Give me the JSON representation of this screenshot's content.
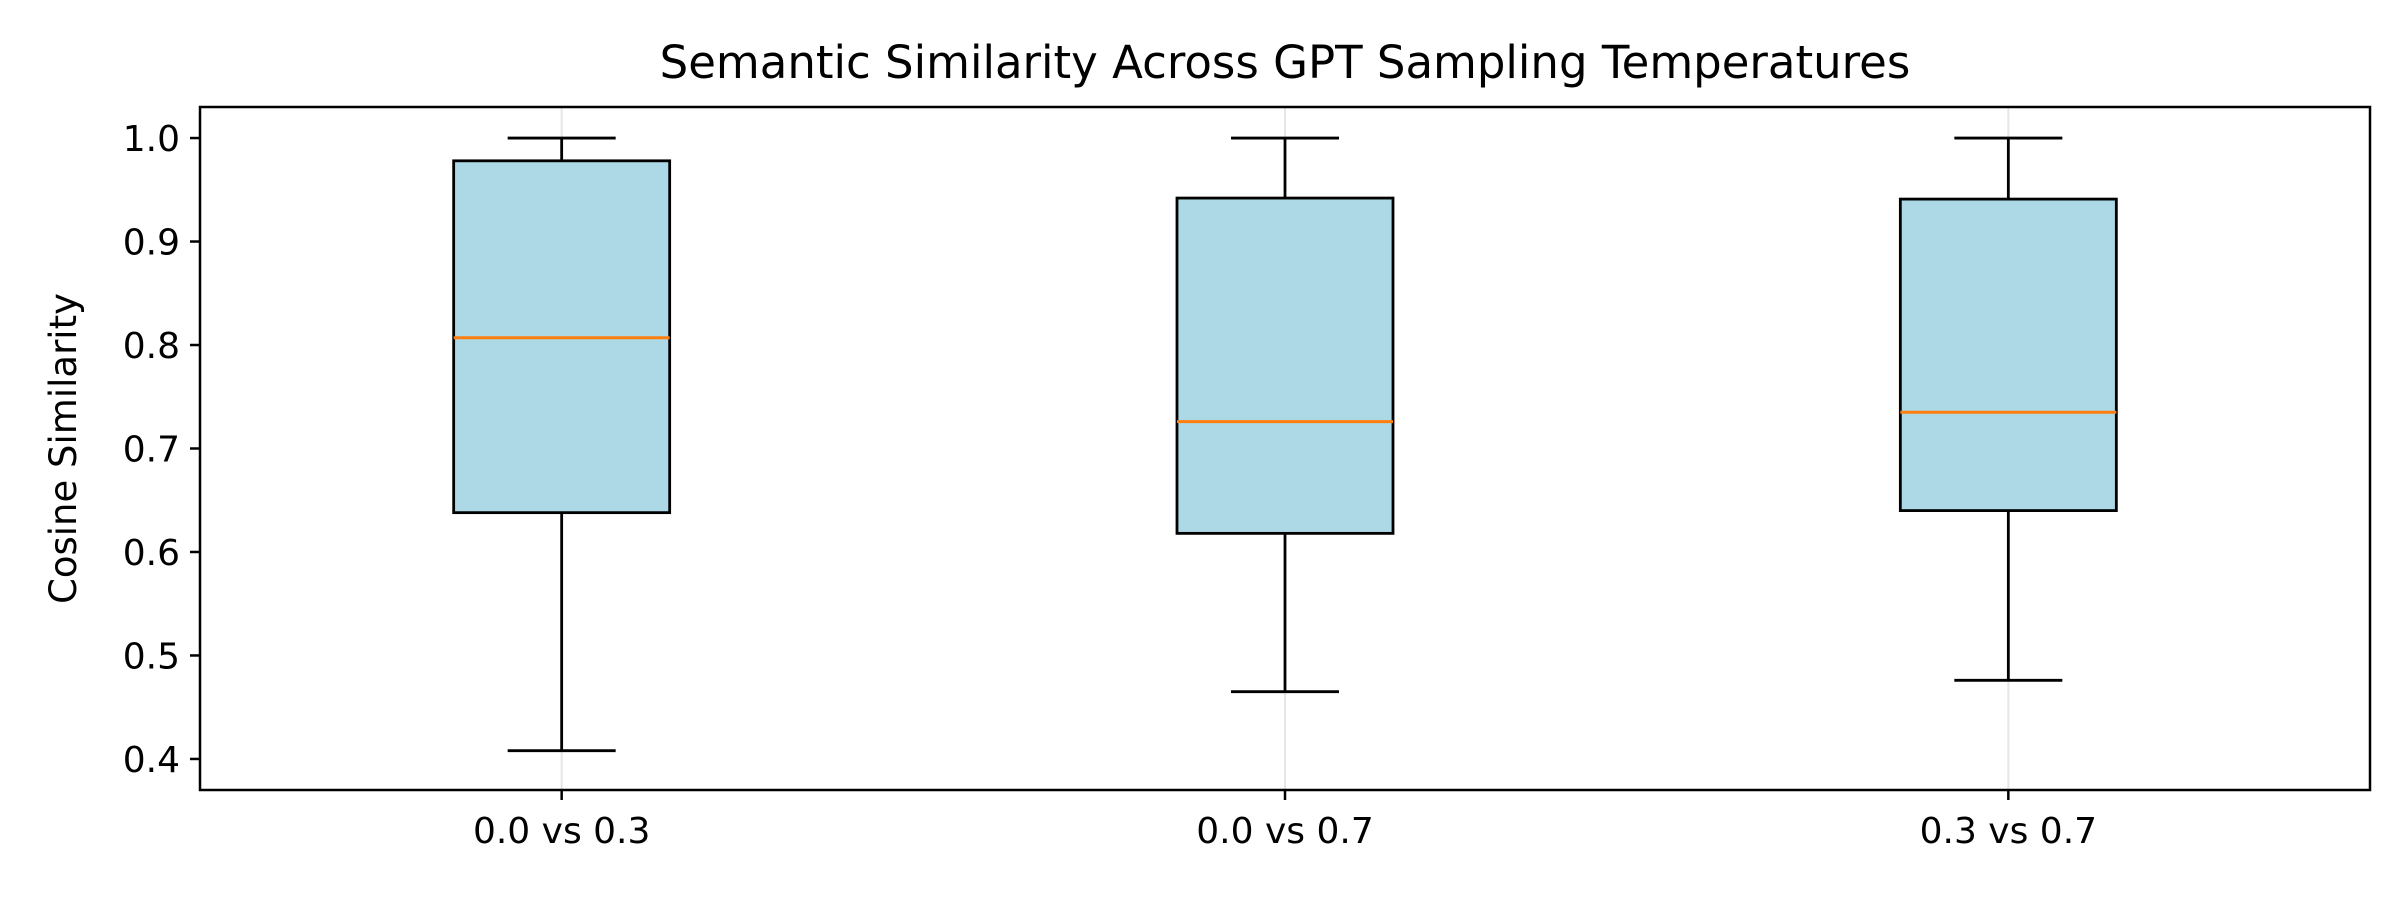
{
  "chart_data": {
    "type": "box",
    "title": "Semantic Similarity Across GPT Sampling Temperatures",
    "xlabel": "",
    "ylabel": "Cosine Similarity",
    "ylim": [
      0.37,
      1.03
    ],
    "yticks": [
      0.4,
      0.5,
      0.6,
      0.7,
      0.8,
      0.9,
      1.0
    ],
    "ytick_labels": [
      "0.4",
      "0.5",
      "0.6",
      "0.7",
      "0.8",
      "0.9",
      "1.0"
    ],
    "categories": [
      "0.0 vs 0.3",
      "0.0 vs 0.7",
      "0.3 vs 0.7"
    ],
    "boxes": [
      {
        "label": "0.0 vs 0.3",
        "whisker_low": 0.408,
        "q1": 0.638,
        "median": 0.807,
        "q3": 0.978,
        "whisker_high": 1.0
      },
      {
        "label": "0.0 vs 0.7",
        "whisker_low": 0.465,
        "q1": 0.618,
        "median": 0.726,
        "q3": 0.942,
        "whisker_high": 1.0
      },
      {
        "label": "0.3 vs 0.7",
        "whisker_low": 0.476,
        "q1": 0.64,
        "median": 0.735,
        "q3": 0.941,
        "whisker_high": 1.0
      }
    ],
    "grid": {
      "x": true,
      "y": false
    },
    "colors": {
      "box_fill": "#add8e6",
      "box_edge": "#000000",
      "median": "#ff7f0e",
      "grid": "#e6e6e6"
    }
  }
}
